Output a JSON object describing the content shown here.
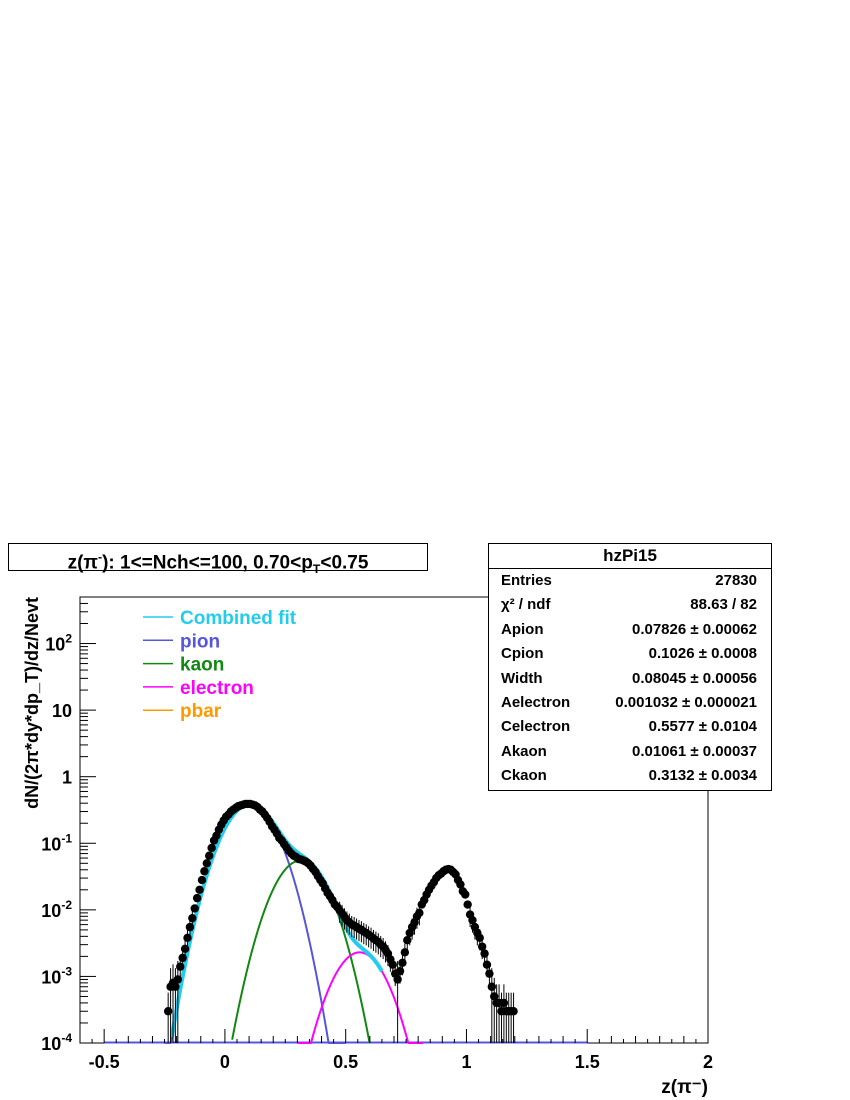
{
  "title": {
    "prefix": "z(",
    "particle": "π",
    "charge": "-",
    "mid": "): 1<=Nch<=100, 0.70<p",
    "sub": "T",
    "suffix": "<0.75"
  },
  "stats": {
    "name": "hzPi15",
    "rows": [
      {
        "key": "Entries",
        "value": "27830"
      },
      {
        "key": "χ² / ndf",
        "value": "88.63 / 82"
      },
      {
        "key": "Apion",
        "value": "0.07826 ± 0.00062"
      },
      {
        "key": "Cpion",
        "value": "0.1026 ± 0.0008"
      },
      {
        "key": "Width",
        "value": "0.08045 ± 0.00056"
      },
      {
        "key": "Aelectron",
        "value": "0.001032 ± 0.000021"
      },
      {
        "key": "Celectron",
        "value": "0.5577 ± 0.0104"
      },
      {
        "key": "Akaon",
        "value": "0.01061 ± 0.00037"
      },
      {
        "key": "Ckaon",
        "value": "0.3132 ± 0.0034"
      }
    ]
  },
  "colors": {
    "combined": "#22ccee",
    "pion": "#5555dd",
    "kaon": "#118811",
    "electron": "#ff00ff",
    "pbar": "#ff9900",
    "data": "#000000"
  },
  "chart_data": {
    "type": "scatter",
    "xlabel": "z(π⁻)",
    "ylabel": "dN/(2π*dy*dp_T)/dz/Nevt",
    "xlim": [
      -0.6,
      2.0
    ],
    "ylim": [
      0.0001,
      500
    ],
    "yscale": "log",
    "x_ticks": [
      "-0.5",
      "0",
      "0.5",
      "1",
      "1.5",
      "2"
    ],
    "y_ticks": [
      "10^-4",
      "10^-3",
      "10^-2",
      "10^-1",
      "1",
      "10",
      "10^2"
    ],
    "legend": [
      {
        "label": "Combined fit",
        "color": "#22ccee"
      },
      {
        "label": "pion",
        "color": "#5555dd"
      },
      {
        "label": "kaon",
        "color": "#118811"
      },
      {
        "label": "electron",
        "color": "#ff00ff"
      },
      {
        "label": "pbar",
        "color": "#ff9900"
      }
    ],
    "curves": {
      "pion": {
        "amplitude": 0.38,
        "center": 0.1026,
        "width": 0.08045
      },
      "kaon": {
        "amplitude": 0.055,
        "center": 0.3132,
        "width": 0.08045
      },
      "electron": {
        "amplitude": 0.0023,
        "center": 0.5577,
        "width": 0.08045
      },
      "combined_range": [
        -0.22,
        0.65
      ],
      "floor": 0.0001,
      "floor_range": [
        -0.5,
        1.5
      ]
    },
    "points": [
      {
        "x": -0.235,
        "y": 0.0003
      },
      {
        "x": -0.225,
        "y": 0.0007
      },
      {
        "x": -0.215,
        "y": 0.0008
      },
      {
        "x": -0.205,
        "y": 0.0007
      },
      {
        "x": -0.195,
        "y": 0.0009
      },
      {
        "x": -0.185,
        "y": 0.0014
      },
      {
        "x": -0.175,
        "y": 0.0019
      },
      {
        "x": -0.165,
        "y": 0.0026
      },
      {
        "x": -0.155,
        "y": 0.0038
      },
      {
        "x": -0.145,
        "y": 0.0055
      },
      {
        "x": -0.135,
        "y": 0.0075
      },
      {
        "x": -0.125,
        "y": 0.0105
      },
      {
        "x": -0.115,
        "y": 0.015
      },
      {
        "x": -0.105,
        "y": 0.02
      },
      {
        "x": -0.095,
        "y": 0.028
      },
      {
        "x": -0.085,
        "y": 0.038
      },
      {
        "x": -0.075,
        "y": 0.05
      },
      {
        "x": -0.065,
        "y": 0.065
      },
      {
        "x": -0.055,
        "y": 0.085
      },
      {
        "x": -0.045,
        "y": 0.11
      },
      {
        "x": -0.035,
        "y": 0.13
      },
      {
        "x": -0.025,
        "y": 0.16
      },
      {
        "x": -0.015,
        "y": 0.19
      },
      {
        "x": -0.005,
        "y": 0.22
      },
      {
        "x": 0.005,
        "y": 0.25
      },
      {
        "x": 0.015,
        "y": 0.27
      },
      {
        "x": 0.025,
        "y": 0.3
      },
      {
        "x": 0.035,
        "y": 0.32
      },
      {
        "x": 0.045,
        "y": 0.34
      },
      {
        "x": 0.055,
        "y": 0.36
      },
      {
        "x": 0.065,
        "y": 0.37
      },
      {
        "x": 0.075,
        "y": 0.38
      },
      {
        "x": 0.085,
        "y": 0.39
      },
      {
        "x": 0.095,
        "y": 0.39
      },
      {
        "x": 0.105,
        "y": 0.39
      },
      {
        "x": 0.115,
        "y": 0.38
      },
      {
        "x": 0.125,
        "y": 0.37
      },
      {
        "x": 0.135,
        "y": 0.35
      },
      {
        "x": 0.145,
        "y": 0.32
      },
      {
        "x": 0.155,
        "y": 0.3
      },
      {
        "x": 0.165,
        "y": 0.27
      },
      {
        "x": 0.175,
        "y": 0.24
      },
      {
        "x": 0.185,
        "y": 0.21
      },
      {
        "x": 0.195,
        "y": 0.18
      },
      {
        "x": 0.205,
        "y": 0.16
      },
      {
        "x": 0.215,
        "y": 0.14
      },
      {
        "x": 0.225,
        "y": 0.12
      },
      {
        "x": 0.235,
        "y": 0.11
      },
      {
        "x": 0.245,
        "y": 0.097
      },
      {
        "x": 0.255,
        "y": 0.087
      },
      {
        "x": 0.265,
        "y": 0.077
      },
      {
        "x": 0.275,
        "y": 0.07
      },
      {
        "x": 0.285,
        "y": 0.065
      },
      {
        "x": 0.295,
        "y": 0.062
      },
      {
        "x": 0.305,
        "y": 0.058
      },
      {
        "x": 0.315,
        "y": 0.057
      },
      {
        "x": 0.325,
        "y": 0.055
      },
      {
        "x": 0.335,
        "y": 0.053
      },
      {
        "x": 0.345,
        "y": 0.05
      },
      {
        "x": 0.355,
        "y": 0.046
      },
      {
        "x": 0.365,
        "y": 0.041
      },
      {
        "x": 0.375,
        "y": 0.037
      },
      {
        "x": 0.385,
        "y": 0.032
      },
      {
        "x": 0.395,
        "y": 0.028
      },
      {
        "x": 0.405,
        "y": 0.025
      },
      {
        "x": 0.415,
        "y": 0.021
      },
      {
        "x": 0.425,
        "y": 0.018
      },
      {
        "x": 0.435,
        "y": 0.016
      },
      {
        "x": 0.445,
        "y": 0.014
      },
      {
        "x": 0.455,
        "y": 0.012
      },
      {
        "x": 0.465,
        "y": 0.011
      },
      {
        "x": 0.475,
        "y": 0.0098
      },
      {
        "x": 0.485,
        "y": 0.0088
      },
      {
        "x": 0.495,
        "y": 0.0078
      },
      {
        "x": 0.505,
        "y": 0.007
      },
      {
        "x": 0.515,
        "y": 0.0065
      },
      {
        "x": 0.525,
        "y": 0.006
      },
      {
        "x": 0.535,
        "y": 0.0058
      },
      {
        "x": 0.545,
        "y": 0.0055
      },
      {
        "x": 0.555,
        "y": 0.0052
      },
      {
        "x": 0.565,
        "y": 0.005
      },
      {
        "x": 0.575,
        "y": 0.0047
      },
      {
        "x": 0.585,
        "y": 0.0045
      },
      {
        "x": 0.595,
        "y": 0.0042
      },
      {
        "x": 0.605,
        "y": 0.004
      },
      {
        "x": 0.615,
        "y": 0.0037
      },
      {
        "x": 0.625,
        "y": 0.0035
      },
      {
        "x": 0.635,
        "y": 0.0033
      },
      {
        "x": 0.645,
        "y": 0.003
      },
      {
        "x": 0.655,
        "y": 0.0028
      },
      {
        "x": 0.665,
        "y": 0.0025
      },
      {
        "x": 0.675,
        "y": 0.0022
      },
      {
        "x": 0.685,
        "y": 0.0018
      },
      {
        "x": 0.695,
        "y": 0.0015
      },
      {
        "x": 0.705,
        "y": 0.0011
      },
      {
        "x": 0.715,
        "y": 0.0009
      },
      {
        "x": 0.725,
        "y": 0.0012
      },
      {
        "x": 0.735,
        "y": 0.0016
      },
      {
        "x": 0.745,
        "y": 0.0023
      },
      {
        "x": 0.755,
        "y": 0.0035
      },
      {
        "x": 0.765,
        "y": 0.0045
      },
      {
        "x": 0.775,
        "y": 0.0055
      },
      {
        "x": 0.785,
        "y": 0.0065
      },
      {
        "x": 0.795,
        "y": 0.008
      },
      {
        "x": 0.805,
        "y": 0.009
      },
      {
        "x": 0.815,
        "y": 0.012
      },
      {
        "x": 0.825,
        "y": 0.014
      },
      {
        "x": 0.835,
        "y": 0.017
      },
      {
        "x": 0.845,
        "y": 0.02
      },
      {
        "x": 0.855,
        "y": 0.023
      },
      {
        "x": 0.865,
        "y": 0.026
      },
      {
        "x": 0.875,
        "y": 0.03
      },
      {
        "x": 0.885,
        "y": 0.033
      },
      {
        "x": 0.895,
        "y": 0.035
      },
      {
        "x": 0.905,
        "y": 0.038
      },
      {
        "x": 0.915,
        "y": 0.04
      },
      {
        "x": 0.925,
        "y": 0.041
      },
      {
        "x": 0.935,
        "y": 0.04
      },
      {
        "x": 0.945,
        "y": 0.037
      },
      {
        "x": 0.955,
        "y": 0.034
      },
      {
        "x": 0.965,
        "y": 0.028
      },
      {
        "x": 0.975,
        "y": 0.024
      },
      {
        "x": 0.985,
        "y": 0.019
      },
      {
        "x": 0.995,
        "y": 0.017
      },
      {
        "x": 1.005,
        "y": 0.012
      },
      {
        "x": 1.015,
        "y": 0.0085
      },
      {
        "x": 1.025,
        "y": 0.007
      },
      {
        "x": 1.035,
        "y": 0.0055
      },
      {
        "x": 1.045,
        "y": 0.0045
      },
      {
        "x": 1.055,
        "y": 0.0038
      },
      {
        "x": 1.065,
        "y": 0.0028
      },
      {
        "x": 1.075,
        "y": 0.0022
      },
      {
        "x": 1.085,
        "y": 0.0015
      },
      {
        "x": 1.095,
        "y": 0.0011
      },
      {
        "x": 1.105,
        "y": 0.0007
      },
      {
        "x": 1.115,
        "y": 0.0005
      },
      {
        "x": 1.125,
        "y": 0.0004
      },
      {
        "x": 1.135,
        "y": 0.0004
      },
      {
        "x": 1.145,
        "y": 0.0003
      },
      {
        "x": 1.155,
        "y": 0.0004
      },
      {
        "x": 1.165,
        "y": 0.0003
      },
      {
        "x": 1.175,
        "y": 0.0003
      },
      {
        "x": 1.185,
        "y": 0.0003
      },
      {
        "x": 1.195,
        "y": 0.0003
      }
    ]
  }
}
